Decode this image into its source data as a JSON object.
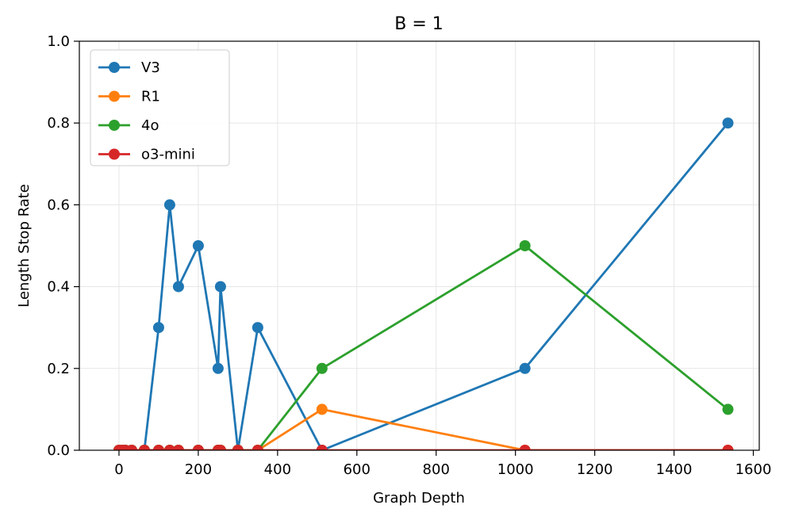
{
  "chart_data": {
    "type": "line",
    "title": "B = 1",
    "xlabel": "Graph Depth",
    "ylabel": "Length Stop Rate",
    "xlim": [
      -100,
      1615
    ],
    "ylim": [
      0,
      1.0
    ],
    "xticks": [
      0,
      200,
      400,
      600,
      800,
      1000,
      1200,
      1400,
      1600
    ],
    "yticks": [
      0.0,
      0.2,
      0.4,
      0.6,
      0.8,
      1.0
    ],
    "xtick_labels": [
      "0",
      "200",
      "400",
      "600",
      "800",
      "1000",
      "1200",
      "1400",
      "1600"
    ],
    "ytick_labels": [
      "0.0",
      "0.2",
      "0.4",
      "0.6",
      "0.8",
      "1.0"
    ],
    "grid": true,
    "legend_position": "top-left",
    "series": [
      {
        "name": "V3",
        "color": "#1f77b4",
        "x": [
          0,
          8,
          16,
          32,
          64,
          100,
          128,
          150,
          200,
          250,
          256,
          300,
          350,
          512,
          1024,
          1536
        ],
        "y": [
          0.0,
          0.0,
          0.0,
          0.0,
          0.0,
          0.3,
          0.6,
          0.4,
          0.5,
          0.2,
          0.4,
          0.0,
          0.3,
          0.0,
          0.2,
          0.8
        ]
      },
      {
        "name": "R1",
        "color": "#ff7f0e",
        "x": [
          0,
          8,
          16,
          32,
          64,
          100,
          128,
          150,
          200,
          250,
          256,
          300,
          350,
          512,
          1024,
          1536
        ],
        "y": [
          0.0,
          0.0,
          0.0,
          0.0,
          0.0,
          0.0,
          0.0,
          0.0,
          0.0,
          0.0,
          0.0,
          0.0,
          0.0,
          0.1,
          0.0,
          0.0
        ]
      },
      {
        "name": "4o",
        "color": "#2ca02c",
        "x": [
          0,
          8,
          16,
          32,
          64,
          100,
          128,
          150,
          200,
          250,
          256,
          300,
          350,
          512,
          1024,
          1536
        ],
        "y": [
          0.0,
          0.0,
          0.0,
          0.0,
          0.0,
          0.0,
          0.0,
          0.0,
          0.0,
          0.0,
          0.0,
          0.0,
          0.0,
          0.2,
          0.5,
          0.1
        ]
      },
      {
        "name": "o3-mini",
        "color": "#d62728",
        "x": [
          0,
          8,
          16,
          32,
          64,
          100,
          128,
          150,
          200,
          250,
          256,
          300,
          350,
          512,
          1024,
          1536
        ],
        "y": [
          0.0,
          0.0,
          0.0,
          0.0,
          0.0,
          0.0,
          0.0,
          0.0,
          0.0,
          0.0,
          0.0,
          0.0,
          0.0,
          0.0,
          0.0,
          0.0
        ]
      }
    ]
  }
}
